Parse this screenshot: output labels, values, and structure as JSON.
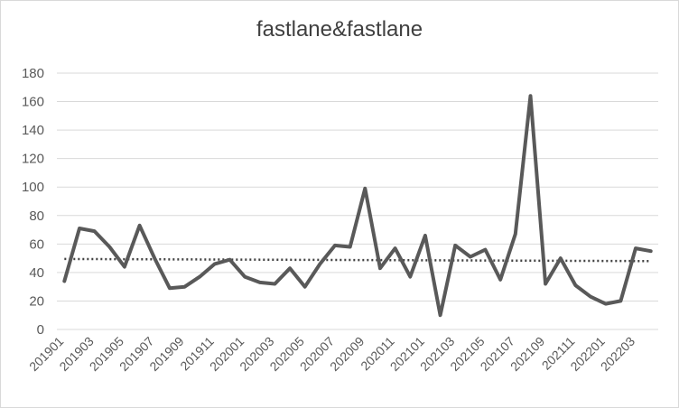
{
  "chart_data": {
    "type": "line",
    "title": "fastlane&fastlane",
    "xlabel": "",
    "ylabel": "",
    "ylim": [
      0,
      180
    ],
    "yticks": [
      0,
      20,
      40,
      60,
      80,
      100,
      120,
      140,
      160,
      180
    ],
    "grid": true,
    "legend": "none",
    "x": [
      "201901",
      "201902",
      "201903",
      "201904",
      "201905",
      "201906",
      "201907",
      "201908",
      "201909",
      "201910",
      "201911",
      "201912",
      "202001",
      "202002",
      "202003",
      "202004",
      "202005",
      "202006",
      "202007",
      "202008",
      "202009",
      "202010",
      "202011",
      "202012",
      "202101",
      "202102",
      "202103",
      "202104",
      "202105",
      "202106",
      "202107",
      "202108",
      "202109",
      "202110",
      "202111",
      "202112",
      "202201",
      "202202",
      "202203",
      "202204"
    ],
    "x_tick_labels": [
      "201901",
      "201903",
      "201905",
      "201907",
      "201909",
      "201911",
      "202001",
      "202003",
      "202005",
      "202007",
      "202009",
      "202011",
      "202101",
      "202103",
      "202105",
      "202107",
      "202109",
      "202111",
      "202201",
      "202203"
    ],
    "series": [
      {
        "values": [
          34,
          71,
          69,
          58,
          44,
          73,
          50,
          29,
          30,
          37,
          46,
          49,
          37,
          33,
          32,
          43,
          30,
          46,
          59,
          58,
          99,
          43,
          57,
          37,
          66,
          10,
          59,
          51,
          56,
          35,
          67,
          164,
          32,
          50,
          31,
          23,
          18,
          20,
          57,
          55
        ],
        "color": "#595959",
        "style": "solid"
      }
    ],
    "trendline": {
      "type": "linear",
      "start": 49.5,
      "end": 48,
      "color": "#404040",
      "style": "dotted"
    }
  }
}
